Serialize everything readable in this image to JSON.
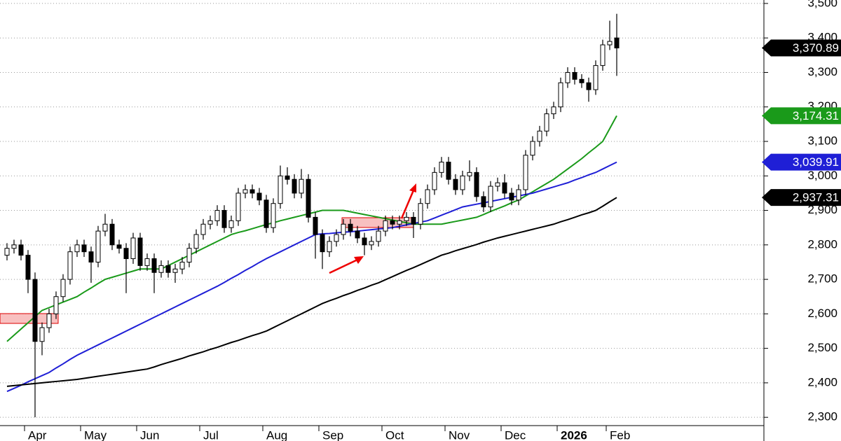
{
  "chart_data": {
    "type": "candlestick",
    "categories": [
      null,
      null,
      null,
      "Apr",
      null,
      null,
      null,
      null,
      null,
      null,
      null,
      "May",
      null,
      null,
      null,
      null,
      null,
      null,
      null,
      "Jun",
      null,
      null,
      null,
      null,
      null,
      null,
      null,
      null,
      "Jul",
      null,
      null,
      null,
      null,
      null,
      null,
      null,
      null,
      "Aug",
      null,
      null,
      null,
      null,
      null,
      null,
      null,
      "Sep",
      null,
      null,
      null,
      null,
      null,
      null,
      null,
      null,
      "Oct",
      null,
      null,
      null,
      null,
      null,
      null,
      null,
      null,
      "Nov",
      null,
      null,
      null,
      null,
      null,
      null,
      null,
      "Dec",
      null,
      null,
      null,
      null,
      null,
      null,
      null,
      "2026",
      null,
      null,
      null,
      null,
      null,
      null,
      "Feb",
      null
    ],
    "open": [
      2770,
      2790,
      2800,
      2770,
      2700,
      2520,
      2560,
      2600,
      2650,
      2700,
      2780,
      2800,
      2780,
      2750,
      2840,
      2860,
      2800,
      2790,
      2760,
      2820,
      2740,
      2760,
      2720,
      2740,
      2720,
      2730,
      2750,
      2790,
      2830,
      2860,
      2870,
      2900,
      2850,
      2870,
      2950,
      2960,
      2950,
      2930,
      2850,
      2920,
      3000,
      2990,
      2950,
      2990,
      2880,
      2830,
      2780,
      2810,
      2830,
      2860,
      2840,
      2820,
      2800,
      2810,
      2840,
      2870,
      2860,
      2870,
      2880,
      2860,
      2920,
      2960,
      3010,
      3040,
      2990,
      2960,
      3000,
      3010,
      2940,
      2910,
      2970,
      2980,
      2950,
      2930,
      2960,
      3060,
      3100,
      3130,
      3180,
      3200,
      3270,
      3300,
      3280,
      3270,
      3250,
      3320,
      3380,
      3400
    ],
    "high": [
      2805,
      2815,
      2815,
      2785,
      2720,
      2575,
      2615,
      2665,
      2715,
      2795,
      2815,
      2815,
      2795,
      2855,
      2890,
      2875,
      2815,
      2805,
      2835,
      2835,
      2775,
      2775,
      2755,
      2755,
      2745,
      2765,
      2805,
      2845,
      2875,
      2885,
      2915,
      2915,
      2885,
      2965,
      2975,
      2975,
      2965,
      2945,
      2935,
      3030,
      3025,
      3005,
      3020,
      3005,
      2895,
      2845,
      2825,
      2845,
      2875,
      2875,
      2855,
      2835,
      2825,
      2855,
      2885,
      2885,
      2885,
      2895,
      2895,
      2935,
      2975,
      3025,
      3055,
      3055,
      3005,
      3015,
      3045,
      3025,
      2955,
      2985,
      2995,
      3005,
      2965,
      2975,
      3075,
      3115,
      3145,
      3195,
      3215,
      3285,
      3315,
      3315,
      3295,
      3285,
      3335,
      3395,
      3450,
      3470
    ],
    "low": [
      2755,
      2775,
      2755,
      2660,
      2300,
      2480,
      2545,
      2585,
      2635,
      2685,
      2765,
      2765,
      2690,
      2735,
      2825,
      2785,
      2775,
      2660,
      2745,
      2725,
      2725,
      2660,
      2705,
      2705,
      2690,
      2715,
      2735,
      2775,
      2815,
      2845,
      2855,
      2835,
      2835,
      2855,
      2935,
      2935,
      2915,
      2835,
      2835,
      2905,
      2975,
      2935,
      2935,
      2865,
      2760,
      2730,
      2765,
      2795,
      2815,
      2825,
      2805,
      2770,
      2785,
      2795,
      2825,
      2845,
      2845,
      2855,
      2820,
      2845,
      2905,
      2945,
      2995,
      2975,
      2945,
      2945,
      2985,
      2925,
      2895,
      2895,
      2955,
      2935,
      2915,
      2915,
      2945,
      3045,
      3085,
      3115,
      3165,
      3185,
      3255,
      3265,
      3255,
      3215,
      3235,
      3305,
      3365,
      3290
    ],
    "close": [
      2790,
      2800,
      2770,
      2700,
      2520,
      2560,
      2600,
      2650,
      2700,
      2780,
      2800,
      2780,
      2750,
      2840,
      2860,
      2800,
      2790,
      2760,
      2820,
      2740,
      2760,
      2720,
      2740,
      2720,
      2730,
      2750,
      2790,
      2830,
      2860,
      2870,
      2900,
      2850,
      2870,
      2950,
      2960,
      2950,
      2930,
      2850,
      2920,
      3000,
      2990,
      2950,
      2990,
      2880,
      2830,
      2780,
      2810,
      2830,
      2860,
      2840,
      2820,
      2800,
      2810,
      2840,
      2870,
      2860,
      2870,
      2880,
      2860,
      2920,
      2960,
      3010,
      3040,
      2990,
      2960,
      3000,
      3010,
      2940,
      2910,
      2970,
      2980,
      2950,
      2930,
      2960,
      3060,
      3100,
      3130,
      3180,
      3200,
      3270,
      3300,
      3280,
      3270,
      3250,
      3320,
      3380,
      3390,
      3370.89
    ],
    "price_label": {
      "value": 3370.89,
      "label": "3,370.89"
    },
    "up_color": "#ffffff",
    "down_color": "#000000",
    "series": [
      {
        "color": "#1a9a1a",
        "values": [
          2520,
          2538,
          2556,
          2574,
          2592,
          2610,
          2618,
          2626,
          2634,
          2642,
          2650,
          2663,
          2675,
          2688,
          2700,
          2706,
          2712,
          2718,
          2724,
          2730,
          2730,
          2730,
          2730,
          2740,
          2750,
          2760,
          2770,
          2780,
          2790,
          2800,
          2810,
          2820,
          2830,
          2836,
          2841,
          2847,
          2853,
          2859,
          2864,
          2870,
          2875,
          2880,
          2885,
          2890,
          2895,
          2900,
          2900,
          2900,
          2900,
          2896,
          2892,
          2888,
          2884,
          2880,
          2876,
          2872,
          2868,
          2864,
          2860,
          2860,
          2860,
          2860,
          2860,
          2864,
          2868,
          2872,
          2876,
          2880,
          2888,
          2897,
          2905,
          2913,
          2922,
          2930,
          2942,
          2954,
          2966,
          2978,
          2990,
          3005,
          3020,
          3035,
          3050,
          3067,
          3083,
          3100,
          3137,
          3174.31
        ],
        "price_label": {
          "value": 3174.31,
          "label": "3,174.31"
        }
      },
      {
        "color": "#1f1fd6",
        "values": [
          2375,
          2384,
          2393,
          2403,
          2412,
          2421,
          2430,
          2443,
          2455,
          2468,
          2480,
          2490,
          2500,
          2510,
          2520,
          2530,
          2540,
          2550,
          2560,
          2570,
          2580,
          2590,
          2600,
          2610,
          2620,
          2630,
          2640,
          2650,
          2660,
          2670,
          2680,
          2691,
          2703,
          2714,
          2726,
          2737,
          2749,
          2760,
          2770,
          2780,
          2790,
          2800,
          2810,
          2820,
          2830,
          2832,
          2833,
          2835,
          2837,
          2838,
          2840,
          2842,
          2844,
          2846,
          2848,
          2850,
          2854,
          2858,
          2862,
          2866,
          2870,
          2878,
          2886,
          2894,
          2902,
          2910,
          2914,
          2918,
          2922,
          2926,
          2930,
          2934,
          2938,
          2942,
          2946,
          2950,
          2956,
          2962,
          2968,
          2974,
          2980,
          2988,
          2995,
          3003,
          3010,
          3020,
          3030,
          3039.91
        ],
        "price_label": {
          "value": 3039.91,
          "label": "3,039.91"
        }
      },
      {
        "color": "#000000",
        "values": [
          2390,
          2392,
          2394,
          2396,
          2398,
          2400,
          2402,
          2404,
          2406,
          2408,
          2410,
          2413,
          2416,
          2419,
          2422,
          2425,
          2428,
          2431,
          2434,
          2437,
          2440,
          2446,
          2453,
          2459,
          2465,
          2471,
          2478,
          2484,
          2490,
          2497,
          2503,
          2510,
          2517,
          2523,
          2530,
          2537,
          2543,
          2550,
          2560,
          2570,
          2580,
          2590,
          2600,
          2610,
          2620,
          2630,
          2638,
          2645,
          2653,
          2660,
          2668,
          2675,
          2683,
          2690,
          2699,
          2708,
          2717,
          2726,
          2734,
          2743,
          2752,
          2761,
          2770,
          2776,
          2783,
          2789,
          2795,
          2801,
          2808,
          2814,
          2820,
          2825,
          2830,
          2835,
          2840,
          2845,
          2850,
          2855,
          2860,
          2867,
          2873,
          2880,
          2887,
          2893,
          2900,
          2912,
          2925,
          2937.31
        ],
        "price_label": {
          "value": 2937.31,
          "label": "2,937.31"
        }
      }
    ],
    "ylim": [
      2276,
      3510
    ],
    "yticks": [
      {
        "value": 2300,
        "label": "2,300"
      },
      {
        "value": 2400,
        "label": "2,400"
      },
      {
        "value": 2500,
        "label": "2,500"
      },
      {
        "value": 2600,
        "label": "2,600"
      },
      {
        "value": 2700,
        "label": "2,700"
      },
      {
        "value": 2800,
        "label": "2,800"
      },
      {
        "value": 2900,
        "label": "2,900"
      },
      {
        "value": 3000,
        "label": "3,000"
      },
      {
        "value": 3100,
        "label": "3,100"
      },
      {
        "value": 3200,
        "label": "3,200"
      },
      {
        "value": 3300,
        "label": "3,300"
      },
      {
        "value": 3400,
        "label": "3,400"
      },
      {
        "value": 3500,
        "label": "3,500"
      }
    ],
    "grid": true
  }
}
